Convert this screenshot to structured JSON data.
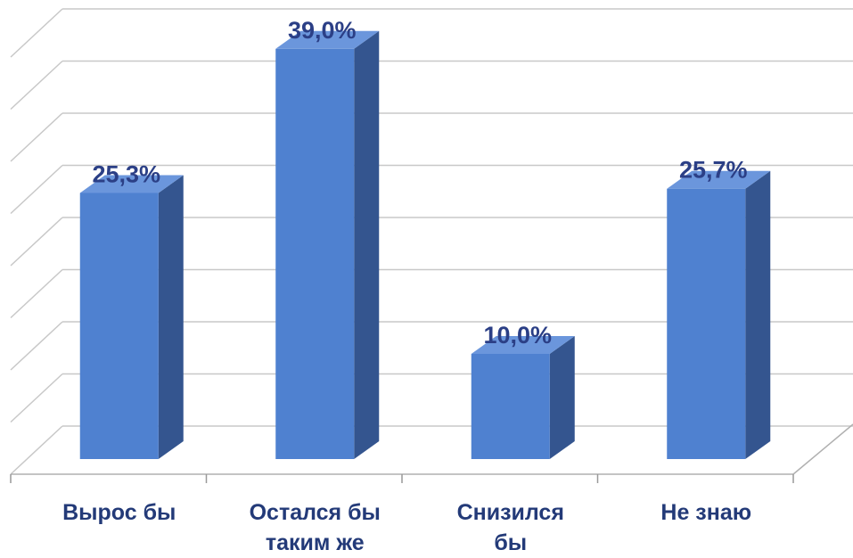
{
  "chart_data": {
    "type": "bar",
    "categories": [
      "Вырос бы",
      "Остался бы таким же",
      "Снизился бы",
      "Не знаю"
    ],
    "values": [
      25.3,
      39.0,
      10.0,
      25.7
    ],
    "value_labels": [
      "25,3%",
      "39,0%",
      "10,0%",
      "25,7%"
    ],
    "color": "#4f81d0"
  }
}
